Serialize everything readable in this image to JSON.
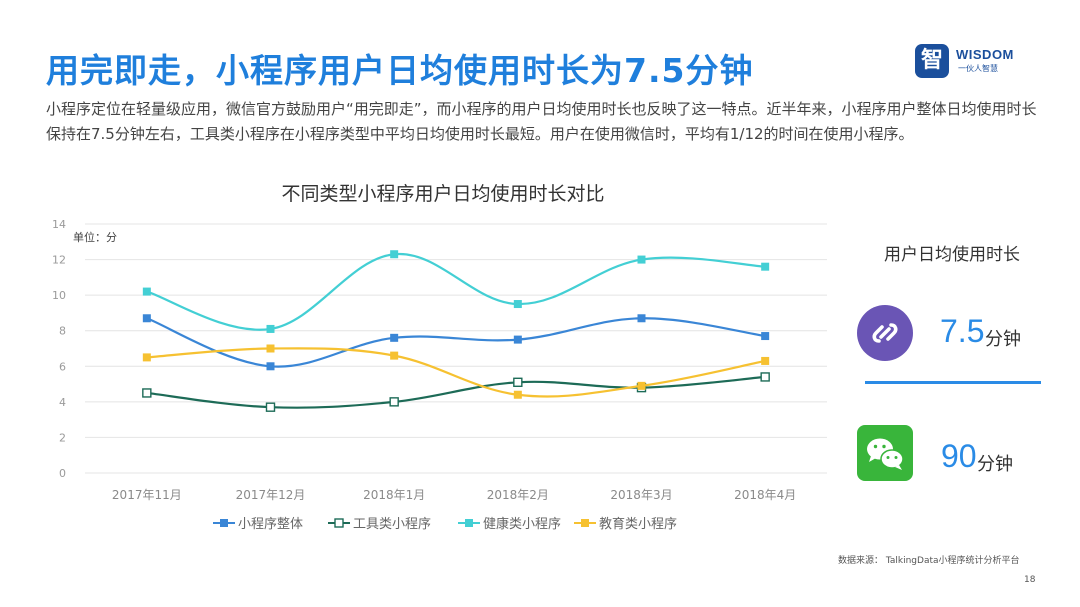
{
  "header": {
    "title": "用完即走，小程序用户日均使用时长为7.5分钟",
    "description": "小程序定位在轻量级应用，微信官方鼓励用户“用完即走”，而小程序的用户日均使用时长也反映了这一特点。近半年来，小程序用户整体日均使用时长保持在7.5分钟左右，工具类小程序在小程序类型中平均日均使用时长最短。用户在使用微信时，平均有1/12的时间在使用小程序。"
  },
  "logo": {
    "char": "智",
    "text": "WISDOM",
    "sub": "一伙人智慧"
  },
  "chart_data": {
    "type": "line",
    "title": "不同类型小程序用户日均使用时长对比",
    "unit_label": "单位：分",
    "categories": [
      "2017年11月",
      "2017年12月",
      "2018年1月",
      "2018年2月",
      "2018年3月",
      "2018年4月"
    ],
    "yticks": [
      "0",
      "2",
      "4",
      "6",
      "8",
      "10",
      "12",
      "14"
    ],
    "ylim": [
      0,
      14
    ],
    "grid": true,
    "legend_position": "bottom",
    "series": [
      {
        "name": "小程序整体",
        "values": [
          8.7,
          6.0,
          7.6,
          7.5,
          8.7,
          7.7
        ],
        "color": "#3a86d6",
        "marker": "filled-square"
      },
      {
        "name": "工具类小程序",
        "values": [
          4.5,
          3.7,
          4.0,
          5.1,
          4.8,
          5.4
        ],
        "color": "#1d6b57",
        "marker": "hollow-square"
      },
      {
        "name": "健康类小程序",
        "values": [
          10.2,
          8.1,
          12.3,
          9.5,
          12.0,
          11.6
        ],
        "color": "#43cfd4",
        "marker": "filled-square"
      },
      {
        "name": "教育类小程序",
        "values": [
          6.5,
          7.0,
          6.6,
          4.4,
          4.9,
          6.3
        ],
        "color": "#f6c131",
        "marker": "filled-square"
      }
    ]
  },
  "sidebar": {
    "title": "用户日均使用时长",
    "mini_program": {
      "value": "7.5",
      "unit": "分钟",
      "icon": "mini-program-icon",
      "color": "#6a55b5"
    },
    "wechat": {
      "value": "90",
      "unit": "分钟",
      "icon": "wechat-icon",
      "color": "#39b53b"
    }
  },
  "footer": {
    "source": "数据来源：  TalkingData小程序统计分析平台",
    "page_number": "18"
  }
}
